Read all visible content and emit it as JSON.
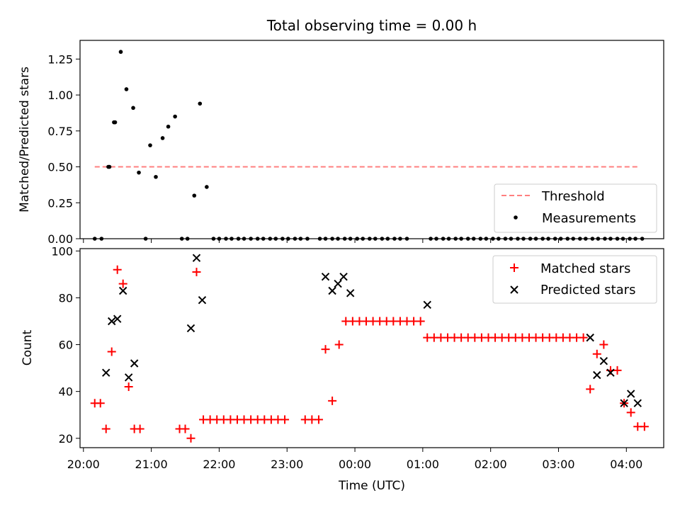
{
  "title": "Total observing time = 0.00 h",
  "xlabel": "Time (UTC)",
  "x_ticks": [
    "20:00",
    "21:00",
    "22:00",
    "23:00",
    "00:00",
    "01:00",
    "02:00",
    "03:00",
    "04:00"
  ],
  "chart_data": [
    {
      "type": "scatter",
      "title": "Total observing time = 0.00 h",
      "ylabel": "Matched/Predicted stars",
      "xlim": [
        "19:57",
        "04:33"
      ],
      "ylim": [
        0,
        1.38
      ],
      "y_ticks": [
        "0.00",
        "0.25",
        "0.50",
        "0.75",
        "1.00",
        "1.25"
      ],
      "legend": {
        "position": "lower-right"
      },
      "threshold": {
        "name": "Threshold",
        "value": 0.5,
        "x_range": [
          "20:10",
          "04:10"
        ],
        "color": "#ff7f7f",
        "style": "dashed"
      },
      "series": [
        {
          "name": "Measurements",
          "color": "#000000",
          "points": [
            [
              "20:10",
              0
            ],
            [
              "20:16",
              0
            ],
            [
              "20:22",
              0.5
            ],
            [
              "20:27",
              0.81
            ],
            [
              "20:33",
              1.3
            ],
            [
              "20:38",
              1.04
            ],
            [
              "20:44",
              0.91
            ],
            [
              "20:49",
              0.46
            ],
            [
              "20:55",
              0
            ],
            [
              "21:27",
              0
            ],
            [
              "21:32",
              0
            ],
            [
              "21:38",
              0.3
            ],
            [
              "21:43",
              0.94
            ],
            [
              "21:49",
              0.36
            ],
            [
              "21:55",
              0
            ],
            [
              "22:00",
              0
            ],
            [
              "22:06",
              0
            ],
            [
              "22:11",
              0
            ],
            [
              "22:17",
              0
            ],
            [
              "22:22",
              0
            ],
            [
              "22:28",
              0
            ],
            [
              "22:34",
              0
            ],
            [
              "22:39",
              0
            ],
            [
              "22:45",
              0
            ],
            [
              "22:50",
              0
            ],
            [
              "22:56",
              0
            ],
            [
              "23:01",
              0
            ],
            [
              "23:07",
              0
            ],
            [
              "23:12",
              0
            ],
            [
              "23:18",
              0
            ],
            [
              "23:29",
              0
            ],
            [
              "23:34",
              0
            ],
            [
              "23:40",
              0
            ],
            [
              "23:45",
              0
            ],
            [
              "23:51",
              0
            ],
            [
              "23:56",
              0
            ],
            [
              "00:02",
              0
            ],
            [
              "00:07",
              0
            ],
            [
              "00:13",
              0
            ],
            [
              "00:18",
              0
            ],
            [
              "00:24",
              0
            ],
            [
              "00:29",
              0
            ],
            [
              "00:35",
              0
            ],
            [
              "00:40",
              0
            ],
            [
              "00:46",
              0
            ],
            [
              "01:07",
              0
            ],
            [
              "01:12",
              0
            ],
            [
              "01:18",
              0
            ],
            [
              "01:23",
              0
            ],
            [
              "01:29",
              0
            ],
            [
              "01:34",
              0
            ],
            [
              "01:40",
              0
            ],
            [
              "01:45",
              0
            ],
            [
              "01:51",
              0
            ],
            [
              "01:56",
              0
            ],
            [
              "02:02",
              0
            ],
            [
              "02:07",
              0
            ],
            [
              "02:13",
              0
            ],
            [
              "02:18",
              0
            ],
            [
              "02:24",
              0
            ],
            [
              "02:29",
              0
            ],
            [
              "02:35",
              0
            ],
            [
              "02:40",
              0
            ],
            [
              "02:46",
              0
            ],
            [
              "02:51",
              0
            ],
            [
              "02:57",
              0
            ],
            [
              "03:02",
              0
            ],
            [
              "03:08",
              0
            ],
            [
              "03:13",
              0
            ],
            [
              "03:19",
              0
            ],
            [
              "03:24",
              0
            ],
            [
              "03:30",
              0
            ],
            [
              "03:35",
              0
            ],
            [
              "03:41",
              0
            ],
            [
              "03:46",
              0
            ],
            [
              "03:52",
              0
            ],
            [
              "03:57",
              0
            ],
            [
              "04:03",
              0
            ],
            [
              "04:08",
              0
            ],
            [
              "04:14",
              0
            ],
            [
              "20:23",
              0.5
            ],
            [
              "20:28",
              0.81
            ],
            [
              "20:59",
              0.65
            ],
            [
              "21:04",
              0.43
            ],
            [
              "21:10",
              0.7
            ],
            [
              "21:15",
              0.78
            ],
            [
              "21:21",
              0.85
            ]
          ]
        }
      ]
    },
    {
      "type": "scatter",
      "ylabel": "Count",
      "xlim": [
        "19:57",
        "04:33"
      ],
      "ylim": [
        16,
        101
      ],
      "y_ticks": [
        "20",
        "40",
        "60",
        "80",
        "100"
      ],
      "legend": {
        "position": "top-right"
      },
      "series": [
        {
          "name": "Matched stars",
          "color": "#ff0000",
          "marker": "plus",
          "points": [
            [
              "20:10",
              35
            ],
            [
              "20:15",
              35
            ],
            [
              "20:20",
              24
            ],
            [
              "20:25",
              57
            ],
            [
              "20:30",
              92
            ],
            [
              "20:35",
              86
            ],
            [
              "20:40",
              42
            ],
            [
              "20:45",
              24
            ],
            [
              "20:50",
              24
            ],
            [
              "21:25",
              24
            ],
            [
              "21:30",
              24
            ],
            [
              "21:35",
              20
            ],
            [
              "21:40",
              91
            ],
            [
              "21:46",
              28
            ],
            [
              "21:52",
              28
            ],
            [
              "21:58",
              28
            ],
            [
              "22:04",
              28
            ],
            [
              "22:10",
              28
            ],
            [
              "22:16",
              28
            ],
            [
              "22:22",
              28
            ],
            [
              "22:28",
              28
            ],
            [
              "22:34",
              28
            ],
            [
              "22:40",
              28
            ],
            [
              "22:46",
              28
            ],
            [
              "22:52",
              28
            ],
            [
              "22:58",
              28
            ],
            [
              "23:16",
              28
            ],
            [
              "23:22",
              28
            ],
            [
              "23:28",
              28
            ],
            [
              "23:34",
              58
            ],
            [
              "23:40",
              36
            ],
            [
              "23:46",
              60
            ],
            [
              "23:52",
              70
            ],
            [
              "23:58",
              70
            ],
            [
              "00:04",
              70
            ],
            [
              "00:10",
              70
            ],
            [
              "00:16",
              70
            ],
            [
              "00:22",
              70
            ],
            [
              "00:28",
              70
            ],
            [
              "00:34",
              70
            ],
            [
              "00:40",
              70
            ],
            [
              "00:46",
              70
            ],
            [
              "00:52",
              70
            ],
            [
              "00:58",
              70
            ],
            [
              "01:04",
              63
            ],
            [
              "01:10",
              63
            ],
            [
              "01:16",
              63
            ],
            [
              "01:22",
              63
            ],
            [
              "01:28",
              63
            ],
            [
              "01:34",
              63
            ],
            [
              "01:40",
              63
            ],
            [
              "01:46",
              63
            ],
            [
              "01:52",
              63
            ],
            [
              "01:58",
              63
            ],
            [
              "02:04",
              63
            ],
            [
              "02:10",
              63
            ],
            [
              "02:16",
              63
            ],
            [
              "02:22",
              63
            ],
            [
              "02:28",
              63
            ],
            [
              "02:34",
              63
            ],
            [
              "02:40",
              63
            ],
            [
              "02:46",
              63
            ],
            [
              "02:52",
              63
            ],
            [
              "02:58",
              63
            ],
            [
              "03:04",
              63
            ],
            [
              "03:10",
              63
            ],
            [
              "03:16",
              63
            ],
            [
              "03:22",
              63
            ],
            [
              "03:28",
              41
            ],
            [
              "03:34",
              56
            ],
            [
              "03:40",
              60
            ],
            [
              "03:46",
              49
            ],
            [
              "03:52",
              49
            ],
            [
              "03:58",
              35
            ],
            [
              "04:04",
              31
            ],
            [
              "04:10",
              25
            ],
            [
              "04:16",
              25
            ]
          ]
        },
        {
          "name": "Predicted stars",
          "color": "#000000",
          "marker": "x",
          "points": [
            [
              "20:20",
              48
            ],
            [
              "20:25",
              70
            ],
            [
              "20:30",
              71
            ],
            [
              "20:35",
              83
            ],
            [
              "20:40",
              46
            ],
            [
              "20:45",
              52
            ],
            [
              "21:35",
              67
            ],
            [
              "21:40",
              97
            ],
            [
              "21:45",
              79
            ],
            [
              "23:34",
              89
            ],
            [
              "23:40",
              83
            ],
            [
              "23:45",
              86
            ],
            [
              "23:50",
              89
            ],
            [
              "23:56",
              82
            ],
            [
              "01:04",
              77
            ],
            [
              "03:28",
              63
            ],
            [
              "03:34",
              47
            ],
            [
              "03:40",
              53
            ],
            [
              "03:46",
              48
            ],
            [
              "03:58",
              35
            ],
            [
              "04:04",
              39
            ],
            [
              "04:10",
              35
            ]
          ]
        }
      ]
    }
  ]
}
